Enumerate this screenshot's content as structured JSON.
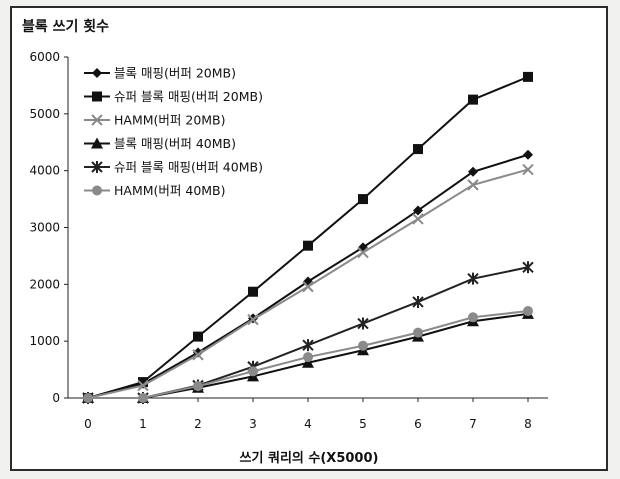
{
  "chart_data": {
    "type": "line",
    "title": "블록 쓰기 횟수",
    "xlabel": "쓰기 쿼리의 수(X5000)",
    "ylabel": "",
    "x": [
      0,
      1,
      2,
      3,
      4,
      5,
      6,
      7,
      8
    ],
    "xlim": [
      0,
      8
    ],
    "ylim": [
      0,
      6000
    ],
    "yticks": [
      0,
      1000,
      2000,
      3000,
      4000,
      5000,
      6000
    ],
    "grid": false,
    "legend_position": "top-left",
    "series": [
      {
        "name": "블록 매핑(버퍼 20MB)",
        "marker": "diamond",
        "color": "#111111",
        "values": [
          0,
          250,
          800,
          1400,
          2050,
          2650,
          3300,
          3980,
          4280
        ]
      },
      {
        "name": "슈퍼 블록 매핑(버퍼 20MB)",
        "marker": "square",
        "color": "#111111",
        "values": [
          0,
          280,
          1080,
          1870,
          2680,
          3500,
          4380,
          5250,
          5650
        ]
      },
      {
        "name": "HAMM(버퍼 20MB)",
        "marker": "x",
        "color": "#8a8a8a",
        "values": [
          0,
          220,
          760,
          1380,
          1960,
          2560,
          3150,
          3750,
          4020
        ]
      },
      {
        "name": "블록 매핑(버퍼 40MB)",
        "marker": "triangle",
        "color": "#111111",
        "values": [
          0,
          0,
          180,
          380,
          620,
          840,
          1080,
          1350,
          1480
        ]
      },
      {
        "name": "슈퍼 블록 매핑(버퍼 40MB)",
        "marker": "star",
        "color": "#222222",
        "values": [
          0,
          0,
          220,
          550,
          930,
          1310,
          1690,
          2100,
          2300
        ]
      },
      {
        "name": "HAMM(버퍼 40MB)",
        "marker": "circle",
        "color": "#8a8a8a",
        "values": [
          0,
          0,
          210,
          470,
          720,
          920,
          1150,
          1420,
          1530
        ]
      }
    ]
  }
}
